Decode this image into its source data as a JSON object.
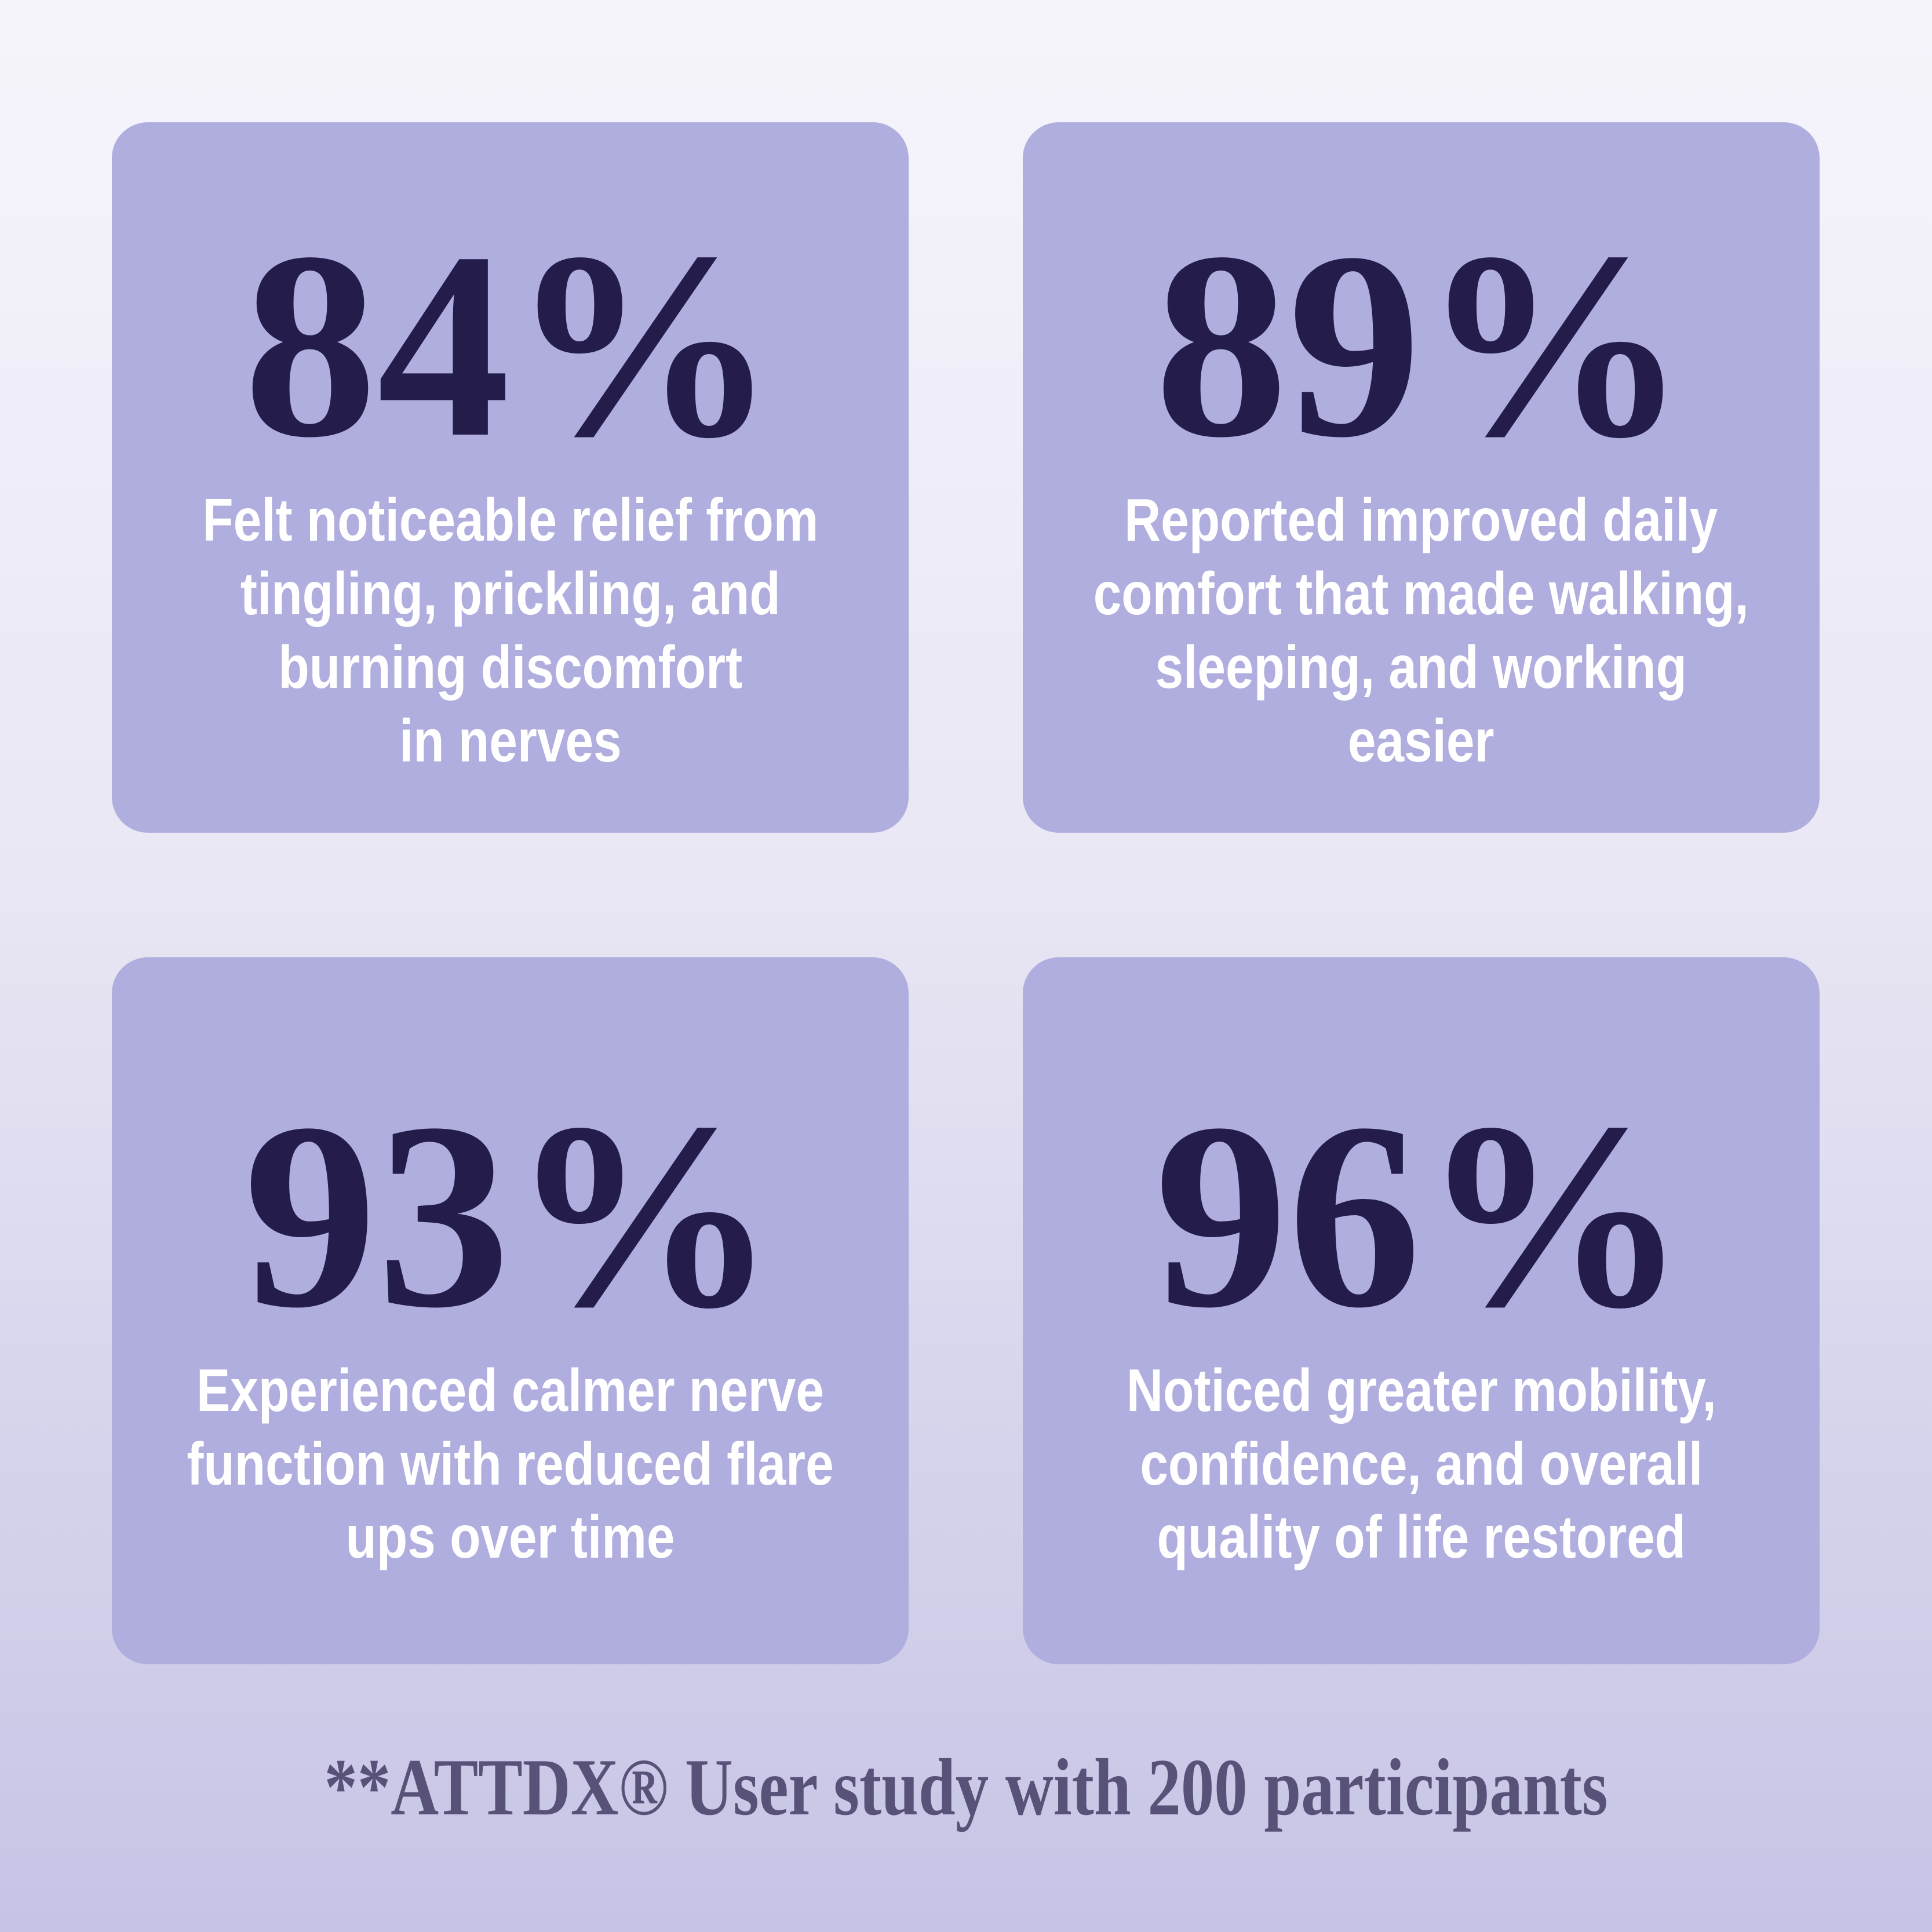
{
  "theme": {
    "bg_top": "#f6f4fb",
    "bg_mid": "#e9e7f4",
    "bg_bottom": "#c6c4e5",
    "card_color": "#b0aede",
    "number_color": "#241d4b",
    "description_color": "#ffffff",
    "footer_color": "#585278"
  },
  "cards": [
    {
      "percent": "84%",
      "description": "Felt noticeable relief from\ntingling, prickling, and\nburning discomfort\nin nerves"
    },
    {
      "percent": "89%",
      "description": "Reported improved daily\ncomfort that made walking,\nsleeping, and working\neasier"
    },
    {
      "percent": "93%",
      "description": "Experienced calmer nerve\nfunction with reduced flare\nups over time"
    },
    {
      "percent": "96%",
      "description": "Noticed greater mobility,\nconfidence, and overall\nquality of life restored"
    }
  ],
  "footer": {
    "note": "**ATTDX® User study with 200 participants"
  }
}
